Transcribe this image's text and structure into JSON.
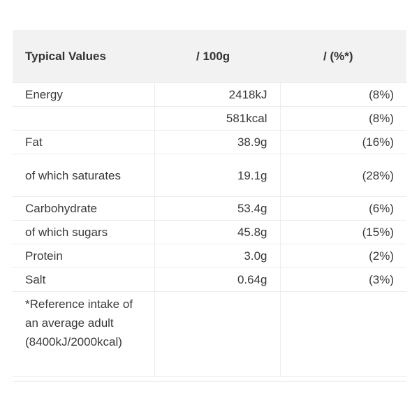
{
  "header": {
    "col_1": "Typical Values",
    "col_2": "/ 100g",
    "col_3": "/ (%*)"
  },
  "rows": [
    {
      "name": "Energy",
      "per_100g": "2418kJ",
      "percent": "(8%)"
    },
    {
      "name": "",
      "per_100g": "581kcal",
      "percent": "(8%)"
    },
    {
      "name": "Fat",
      "per_100g": "38.9g",
      "percent": "(16%)"
    },
    {
      "name": "of which saturates",
      "per_100g": "19.1g",
      "percent": "(28%)"
    },
    {
      "name": "Carbohydrate",
      "per_100g": "53.4g",
      "percent": "(6%)"
    },
    {
      "name": "of which sugars",
      "per_100g": "45.8g",
      "percent": "(15%)"
    },
    {
      "name": "Protein",
      "per_100g": "3.0g",
      "percent": "(2%)"
    },
    {
      "name": "Salt",
      "per_100g": "0.64g",
      "percent": "(3%)"
    }
  ],
  "footnote": "*Reference intake of an average adult (8400kJ/2000kcal)"
}
